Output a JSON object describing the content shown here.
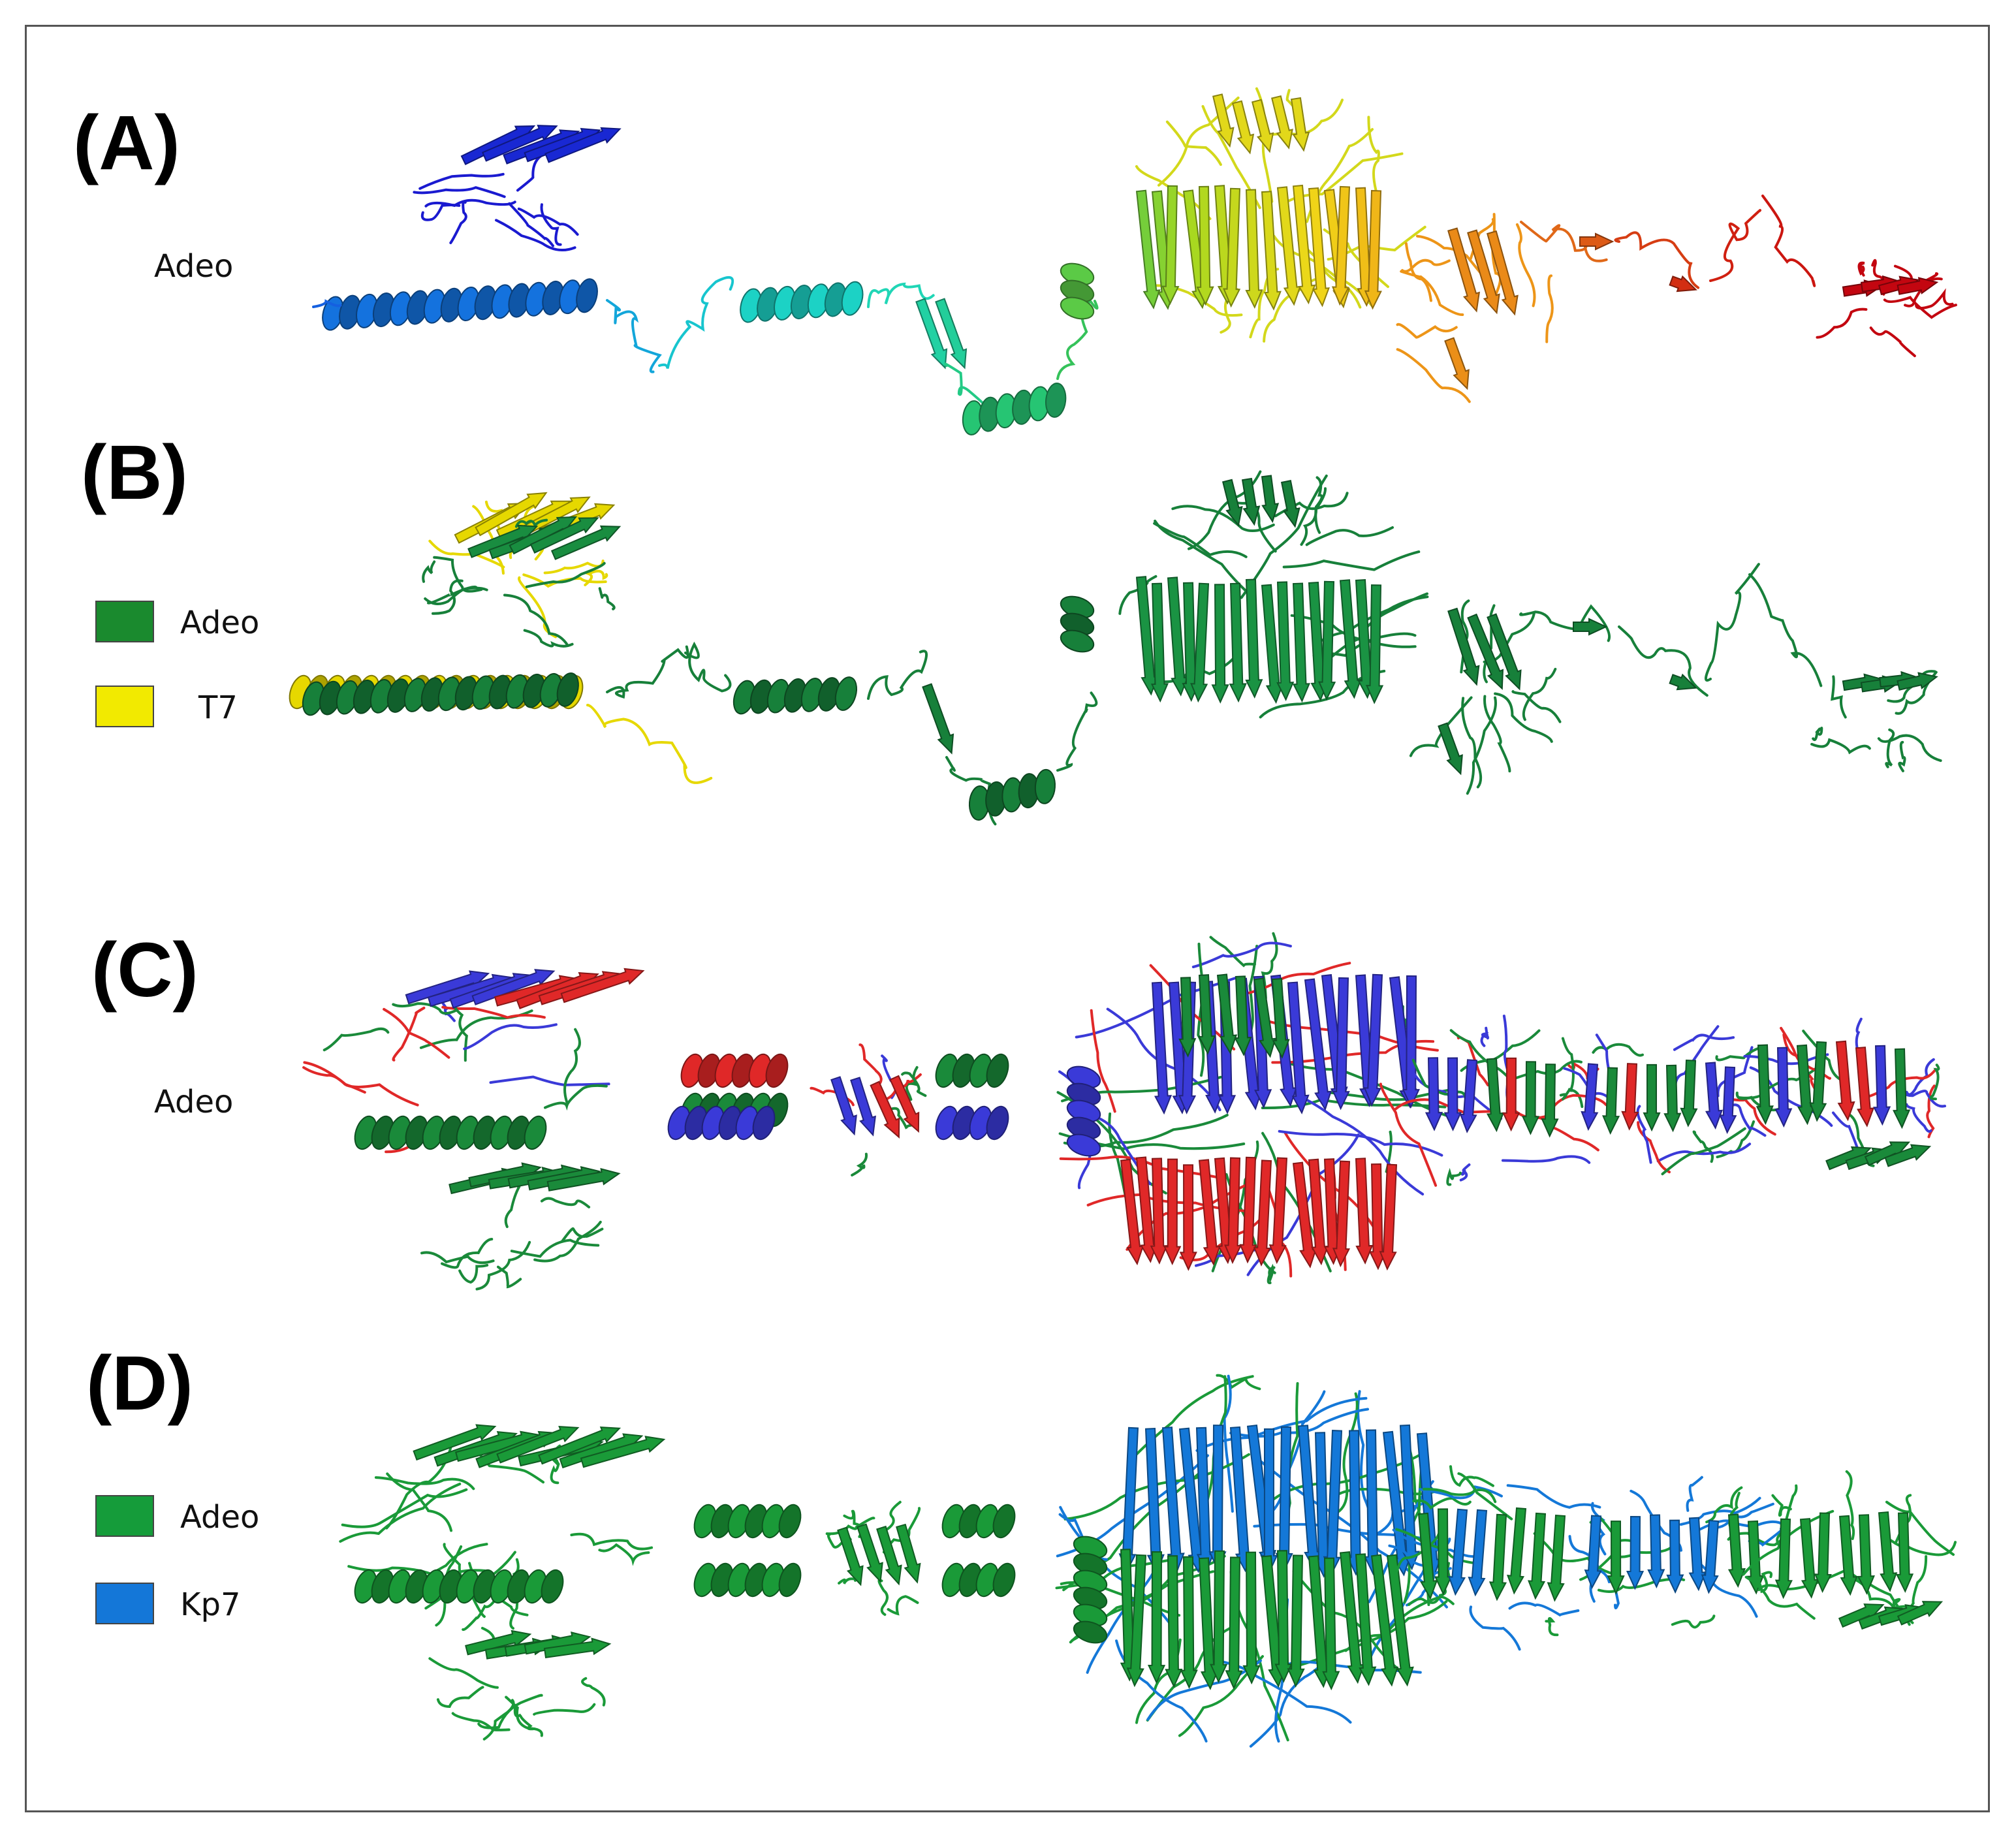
{
  "panels": [
    {
      "label": "(A)",
      "side_text": "Adeo"
    },
    {
      "label": "(B)",
      "legend": [
        {
          "name": "Adeo",
          "color": "#1a8a2e"
        },
        {
          "name": "T7",
          "color": "#f2ea00"
        }
      ]
    },
    {
      "label": "(C)",
      "side_text": "Adeo"
    },
    {
      "label": "(D)",
      "legend": [
        {
          "name": "Adeo",
          "color": "#159c3a"
        },
        {
          "name": "Kp7",
          "color": "#1477d8"
        }
      ]
    }
  ],
  "colors": {
    "rainbow": [
      "#1a1ad0",
      "#1560e0",
      "#12b8d8",
      "#1fd8c0",
      "#28c060",
      "#a8d820",
      "#f0d818",
      "#f0a018",
      "#e06818",
      "#d02010",
      "#c00010"
    ],
    "c_chains": [
      "#1a8a3a",
      "#3a3ad8",
      "#e02828"
    ],
    "d_chains": [
      "#1a9a38",
      "#1478d8"
    ],
    "b_chains": [
      "#17803a",
      "#e6d800"
    ]
  }
}
